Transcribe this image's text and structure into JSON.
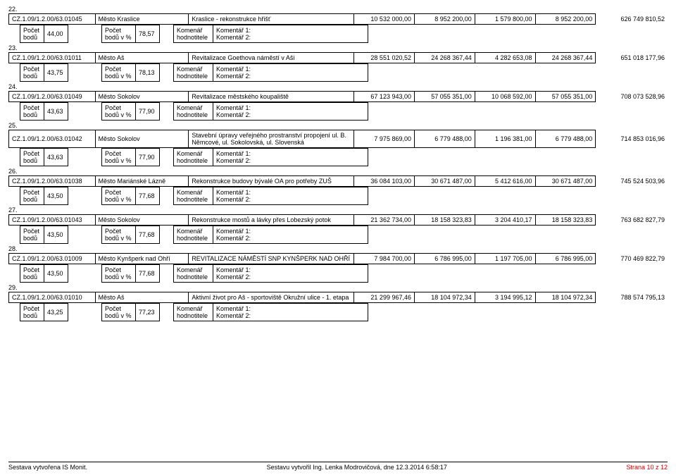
{
  "labels": {
    "pocet_bodu": "Počet bodů",
    "pocet_bodu_pct": "Počet bodů v %",
    "komenar": "Komenář hodnotitele",
    "komentar1": "Komentář 1:",
    "komentar2": "Komentář 2:"
  },
  "records": [
    {
      "num": "22.",
      "code": "CZ.1.09/1.2.00/63.01045",
      "applicant": "Město Kraslice",
      "title": "Kraslice - rekonstrukce hřišť",
      "v1": "10 532 000,00",
      "v2": "8 952 200,00",
      "v3": "1 579 800,00",
      "v4": "8 952 200,00",
      "bodu": "44,00",
      "pct": "78,57",
      "cum": "626 749 810,52"
    },
    {
      "num": "23.",
      "code": "CZ.1.09/1.2.00/63.01011",
      "applicant": "Město Aš",
      "title": "Revitalizace Goethova náměstí v Aši",
      "v1": "28 551 020,52",
      "v2": "24 268 367,44",
      "v3": "4 282 653,08",
      "v4": "24 268 367,44",
      "bodu": "43,75",
      "pct": "78,13",
      "cum": "651 018 177,96"
    },
    {
      "num": "24.",
      "code": "CZ.1.09/1.2.00/63.01049",
      "applicant": "Město Sokolov",
      "title": "Revitalizace městského koupaliště",
      "v1": "67 123 943,00",
      "v2": "57 055 351,00",
      "v3": "10 068 592,00",
      "v4": "57 055 351,00",
      "bodu": "43,63",
      "pct": "77,90",
      "cum": "708 073 528,96"
    },
    {
      "num": "25.",
      "code": "CZ.1.09/1.2.00/63.01042",
      "applicant": "Město Sokolov",
      "title": "Stavební úpravy veřejného prostranství propojení ul. B. Němcové, ul. Sokolovská, ul. Slovenská",
      "v1": "7 975 869,00",
      "v2": "6 779 488,00",
      "v3": "1 196 381,00",
      "v4": "6 779 488,00",
      "bodu": "43,63",
      "pct": "77,90",
      "cum": "714 853 016,96"
    },
    {
      "num": "26.",
      "code": "CZ.1.09/1.2.00/63.01038",
      "applicant": "Město Mariánské Lázně",
      "title": "Rekonstrukce budovy bývalé OA pro potřeby ZUŠ",
      "v1": "36 084 103,00",
      "v2": "30 671 487,00",
      "v3": "5 412 616,00",
      "v4": "30 671 487,00",
      "bodu": "43,50",
      "pct": "77,68",
      "cum": "745 524 503,96"
    },
    {
      "num": "27.",
      "code": "CZ.1.09/1.2.00/63.01043",
      "applicant": "Město Sokolov",
      "title": "Rekonstrukce mostů a lávky přes Lobezský potok",
      "v1": "21 362 734,00",
      "v2": "18 158 323,83",
      "v3": "3 204 410,17",
      "v4": "18 158 323,83",
      "bodu": "43,50",
      "pct": "77,68",
      "cum": "763 682 827,79"
    },
    {
      "num": "28.",
      "code": "CZ.1.09/1.2.00/63.01009",
      "applicant": "Město Kynšperk nad Ohří",
      "title": "REVITALIZACE NÁMĚSTÍ SNP KYNŠPERK NAD OHŘÍ",
      "v1": "7 984 700,00",
      "v2": "6 786 995,00",
      "v3": "1 197 705,00",
      "v4": "6 786 995,00",
      "bodu": "43,50",
      "pct": "77,68",
      "cum": "770 469 822,79"
    },
    {
      "num": "29.",
      "code": "CZ.1.09/1.2.00/63.01010",
      "applicant": "Město Aš",
      "title": "Aktivní život pro Aš - sportoviště Okružní ulice - 1. etapa",
      "v1": "21 299 967,46",
      "v2": "18 104 972,34",
      "v3": "3 194 995,12",
      "v4": "18 104 972,34",
      "bodu": "43,25",
      "pct": "77,23",
      "cum": "788 574 795,13"
    }
  ],
  "footer": {
    "left": "Sestava vytvořena IS Monit.",
    "center": "Sestavu vytvořil Ing. Lenka Modrovičová, dne 12.3.2014 6:58:17",
    "right": "Strana 10 z 12"
  }
}
